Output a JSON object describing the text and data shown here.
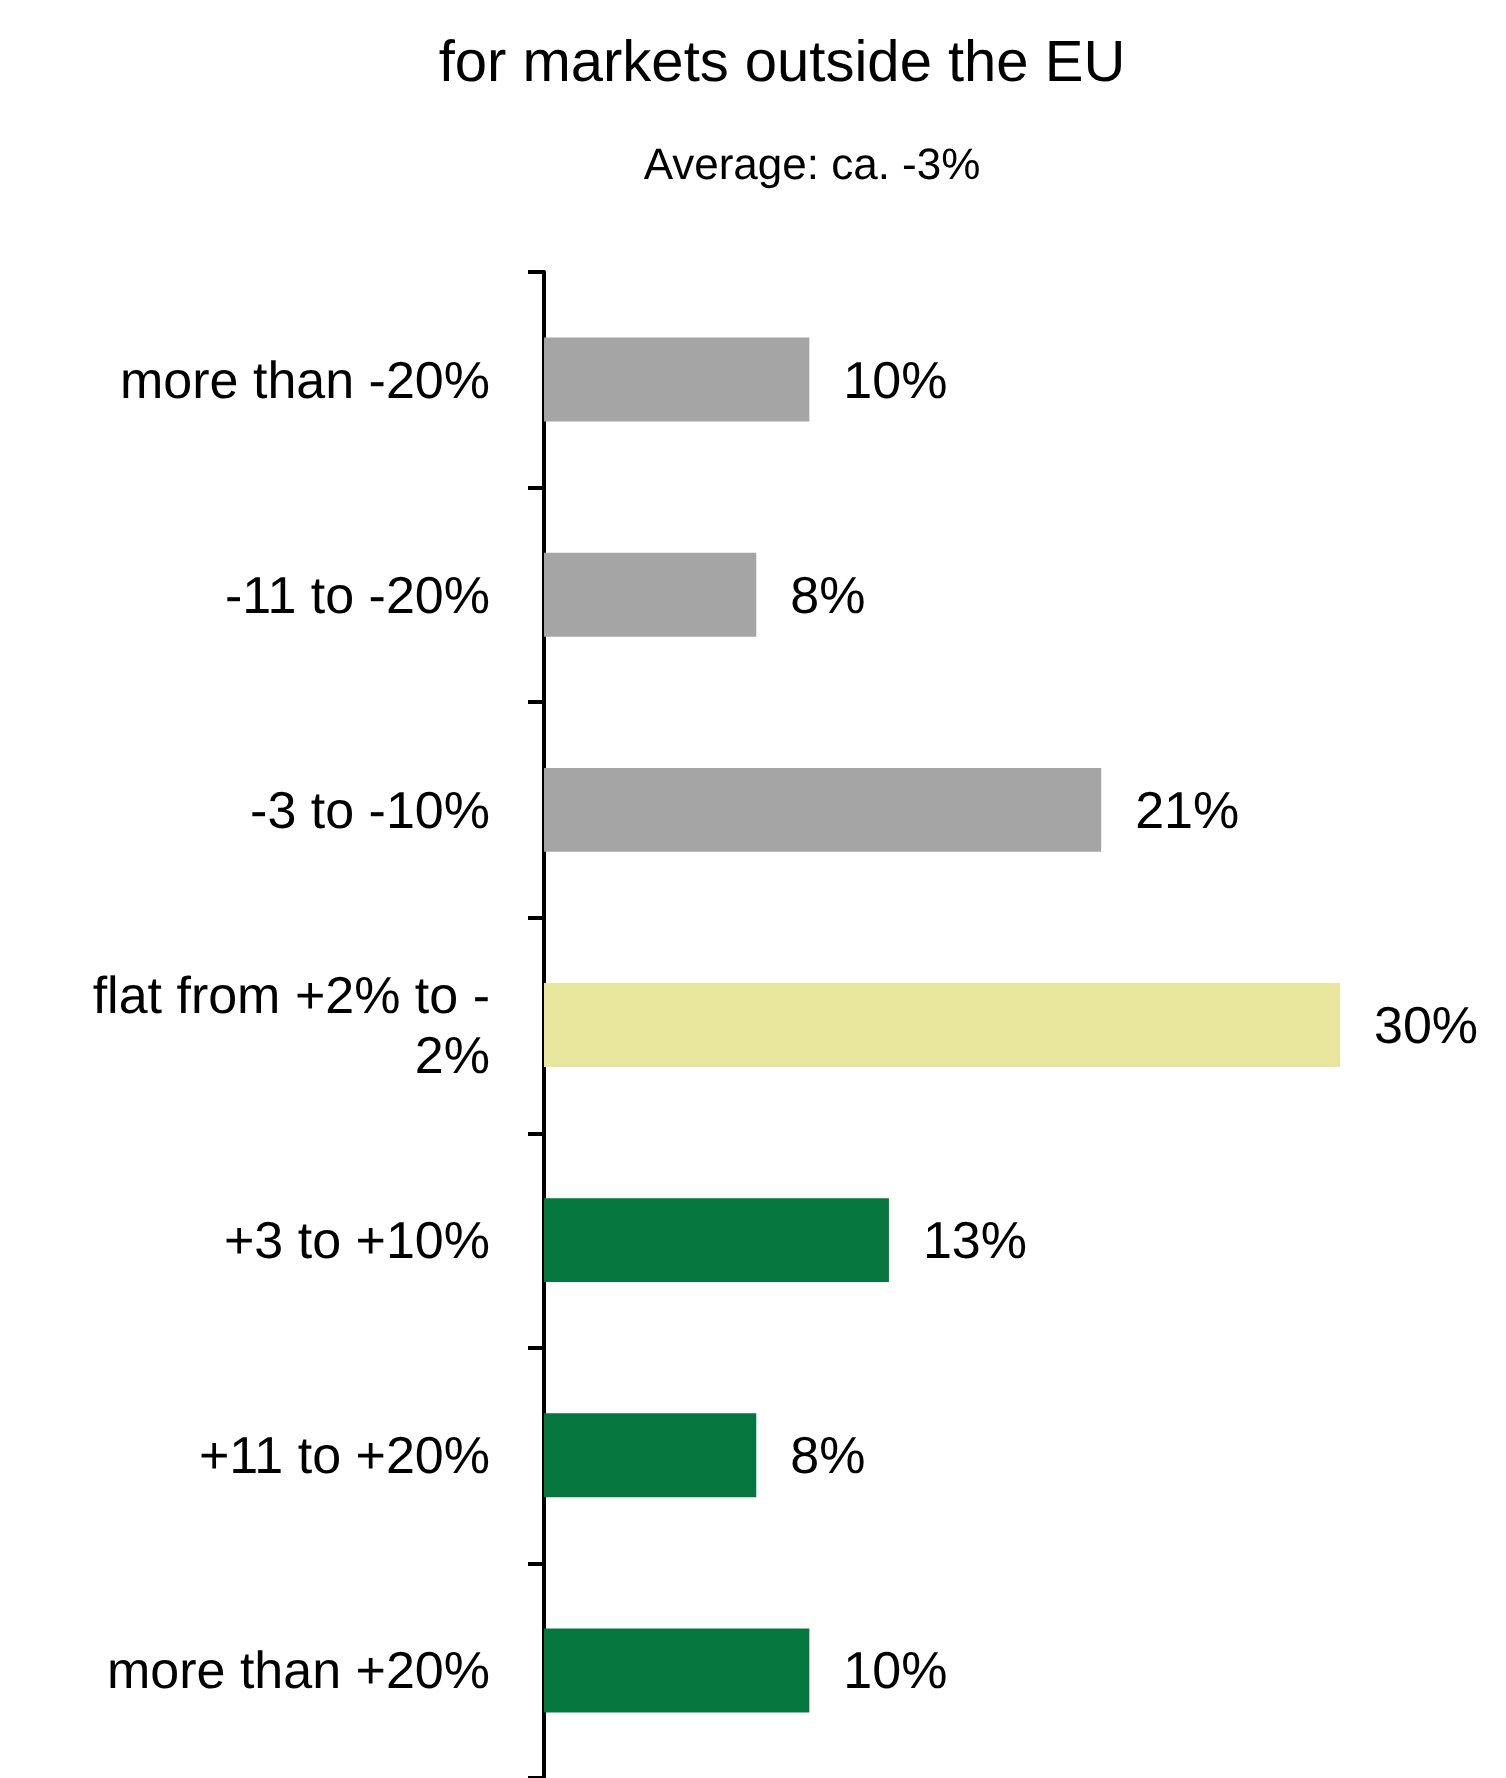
{
  "chart_data": {
    "type": "bar",
    "orientation": "horizontal",
    "title": "for markets outside the EU",
    "subtitle": "Average: ca. -3%",
    "categories": [
      "more than -20%",
      "-11 to -20%",
      "-3 to -10%",
      "flat from +2% to -2%",
      "+3 to +10%",
      "+11 to +20%",
      "more than +20%"
    ],
    "values": [
      10,
      8,
      21,
      30,
      13,
      8,
      10
    ],
    "value_labels": [
      "10%",
      "8%",
      "21%",
      "30%",
      "13%",
      "8%",
      "10%"
    ],
    "colors": [
      "#a5a5a5",
      "#a5a5a5",
      "#a5a5a5",
      "#e8e59c",
      "#04763e",
      "#04763e",
      "#04763e"
    ]
  }
}
